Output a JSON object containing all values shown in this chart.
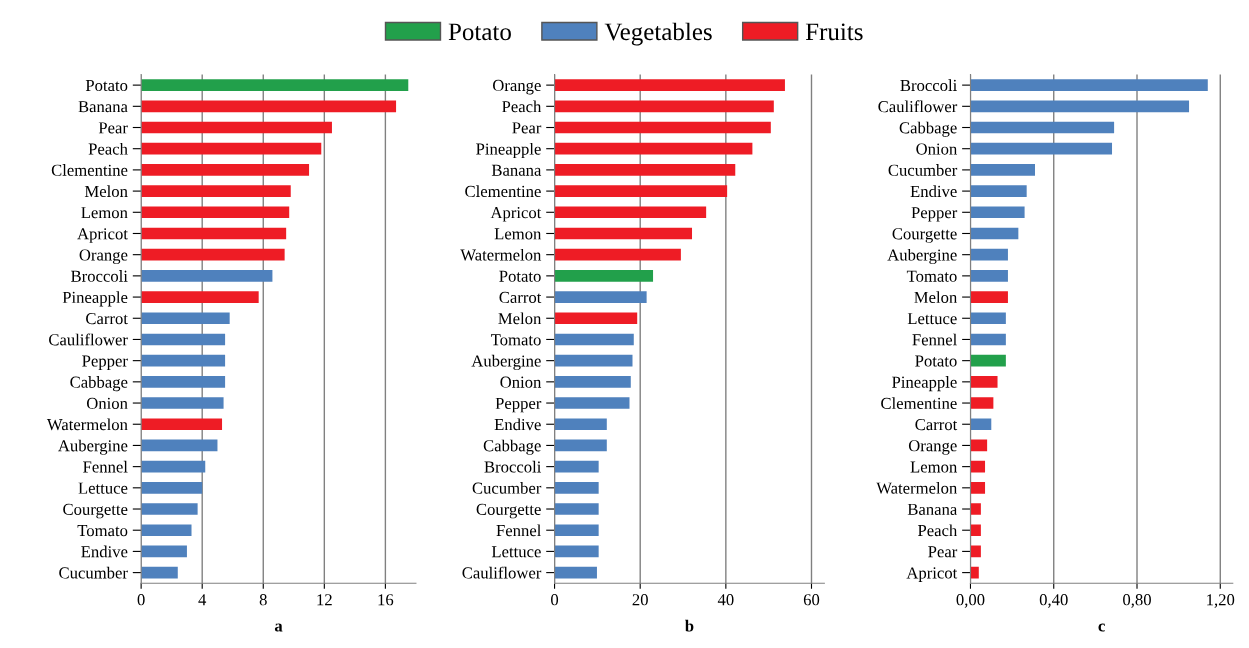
{
  "chart_data": [
    {
      "type": "bar",
      "orientation": "horizontal",
      "xlabel": "a",
      "legend": "top",
      "grid": "x",
      "categories": [
        "Potato",
        "Banana",
        "Pear",
        "Peach",
        "Clementine",
        "Melon",
        "Lemon",
        "Apricot",
        "Orange",
        "Broccoli",
        "Pineapple",
        "Carrot",
        "Cauliflower",
        "Pepper",
        "Cabbage",
        "Onion",
        "Watermelon",
        "Aubergine",
        "Fennel",
        "Lettuce",
        "Courgette",
        "Tomato",
        "Endive",
        "Cucumber"
      ],
      "series": [
        {
          "name": "Potato",
          "color": "#22a04b",
          "values": [
            17.5,
            null,
            null,
            null,
            null,
            null,
            null,
            null,
            null,
            null,
            null,
            null,
            null,
            null,
            null,
            null,
            null,
            null,
            null,
            null,
            null,
            null,
            null,
            null
          ]
        },
        {
          "name": "Vegetables",
          "color": "#4f81bd",
          "values": [
            null,
            null,
            null,
            null,
            null,
            null,
            null,
            null,
            null,
            8.6,
            null,
            5.8,
            5.5,
            5.5,
            5.5,
            5.4,
            null,
            5.0,
            4.2,
            4.0,
            3.7,
            3.3,
            3.0,
            2.4
          ]
        },
        {
          "name": "Fruits",
          "color": "#ee1c25",
          "values": [
            null,
            16.7,
            12.5,
            11.8,
            11.0,
            9.8,
            9.7,
            9.5,
            9.4,
            null,
            7.7,
            null,
            null,
            null,
            null,
            null,
            5.3,
            null,
            null,
            null,
            null,
            null,
            null,
            null
          ]
        }
      ],
      "xlim": [
        0,
        18
      ],
      "xticks": [
        0,
        4,
        8,
        12,
        16
      ]
    },
    {
      "type": "bar",
      "orientation": "horizontal",
      "xlabel": "b",
      "grid": "x",
      "categories": [
        "Orange",
        "Peach",
        "Pear",
        "Pineapple",
        "Banana",
        "Clementine",
        "Apricot",
        "Lemon",
        "Watermelon",
        "Potato",
        "Carrot",
        "Melon",
        "Tomato",
        "Aubergine",
        "Onion",
        "Pepper",
        "Endive",
        "Cabbage",
        "Broccoli",
        "Cucumber",
        "Courgette",
        "Fennel",
        "Lettuce",
        "Cauliflower"
      ],
      "series": [
        {
          "color": "#22a04b",
          "values": [
            null,
            null,
            null,
            null,
            null,
            null,
            null,
            null,
            null,
            23.0,
            null,
            null,
            null,
            null,
            null,
            null,
            null,
            null,
            null,
            null,
            null,
            null,
            null,
            null
          ]
        },
        {
          "color": "#4f81bd",
          "values": [
            null,
            null,
            null,
            null,
            null,
            null,
            null,
            null,
            null,
            null,
            21.5,
            null,
            18.5,
            18.2,
            17.8,
            17.5,
            12.2,
            12.2,
            10.3,
            10.3,
            10.3,
            10.3,
            10.3,
            9.9
          ]
        },
        {
          "color": "#ee1c25",
          "values": [
            53.8,
            51.2,
            50.5,
            46.2,
            42.2,
            40.3,
            35.4,
            32.1,
            29.5,
            null,
            null,
            19.3,
            null,
            null,
            null,
            null,
            null,
            null,
            null,
            null,
            null,
            null,
            null,
            null
          ]
        }
      ],
      "xlim": [
        0,
        63
      ],
      "xticks": [
        0,
        20,
        40,
        60
      ]
    },
    {
      "type": "bar",
      "orientation": "horizontal",
      "xlabel": "c",
      "grid": "x",
      "categories": [
        "Broccoli",
        "Cauliflower",
        "Cabbage",
        "Onion",
        "Cucumber",
        "Endive",
        "Pepper",
        "Courgette",
        "Aubergine",
        "Tomato",
        "Melon",
        "Lettuce",
        "Fennel",
        "Potato",
        "Pineapple",
        "Clementine",
        "Carrot",
        "Orange",
        "Lemon",
        "Watermelon",
        "Banana",
        "Peach",
        "Pear",
        "Apricot"
      ],
      "series": [
        {
          "color": "#22a04b",
          "values": [
            null,
            null,
            null,
            null,
            null,
            null,
            null,
            null,
            null,
            null,
            null,
            null,
            null,
            0.17,
            null,
            null,
            null,
            null,
            null,
            null,
            null,
            null,
            null,
            null
          ]
        },
        {
          "color": "#4f81bd",
          "values": [
            1.14,
            1.05,
            0.69,
            0.68,
            0.31,
            0.27,
            0.26,
            0.23,
            0.18,
            0.18,
            null,
            0.17,
            0.17,
            null,
            null,
            null,
            0.1,
            null,
            null,
            null,
            null,
            null,
            null,
            null
          ]
        },
        {
          "color": "#ee1c25",
          "values": [
            null,
            null,
            null,
            null,
            null,
            null,
            null,
            null,
            null,
            null,
            0.18,
            null,
            null,
            null,
            0.13,
            0.11,
            null,
            0.08,
            0.07,
            0.07,
            0.05,
            0.05,
            0.05,
            0.04
          ]
        }
      ],
      "xlim": [
        0,
        1.26
      ],
      "xticks": [
        {
          "value": 0,
          "label": "0,00"
        },
        {
          "value": 0.4,
          "label": "0,40"
        },
        {
          "value": 0.8,
          "label": "0,80"
        },
        {
          "value": 1.2,
          "label": "1,20"
        }
      ]
    }
  ]
}
